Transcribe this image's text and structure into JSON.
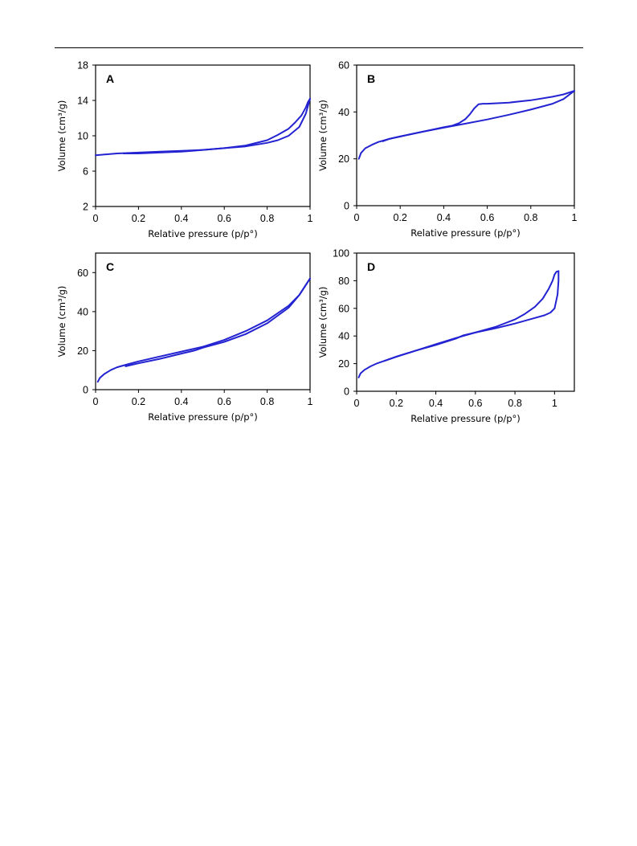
{
  "colors": {
    "series": "#2323d2",
    "axis": "#000000"
  },
  "chart_data": [
    {
      "type": "line",
      "panel_label": "A",
      "xlabel": "Relative pressure (p/p°)",
      "ylabel": "Volume (cm³/g)",
      "xlim": [
        0,
        1
      ],
      "ylim": [
        2,
        18
      ],
      "xticks": [
        "0",
        "0.2",
        "0.4",
        "0.6",
        "0.8",
        "1"
      ],
      "yticks": [
        "2",
        "6",
        "10",
        "14",
        "18"
      ],
      "xtick_values": [
        0,
        0.2,
        0.4,
        0.6,
        0.8,
        1
      ],
      "ytick_values": [
        2,
        6,
        10,
        14,
        18
      ],
      "grid": false,
      "series": [
        {
          "x": [
            0,
            0.05,
            0.1,
            0.2,
            0.3,
            0.4,
            0.5,
            0.6,
            0.7,
            0.8,
            0.85,
            0.9,
            0.93,
            0.96,
            0.98,
            0.99,
            1.0
          ],
          "y": [
            7.8,
            7.9,
            8.0,
            8.1,
            8.2,
            8.3,
            8.4,
            8.6,
            8.9,
            9.5,
            10.1,
            10.8,
            11.5,
            12.3,
            13.2,
            13.8,
            14.2
          ]
        },
        {
          "x": [
            1.0,
            0.98,
            0.95,
            0.9,
            0.85,
            0.8,
            0.7,
            0.6,
            0.5,
            0.45,
            0.4,
            0.3,
            0.2,
            0.13
          ],
          "y": [
            14.2,
            12.5,
            11.0,
            10.0,
            9.5,
            9.2,
            8.8,
            8.6,
            8.4,
            8.3,
            8.2,
            8.1,
            8.0,
            8.0
          ]
        }
      ]
    },
    {
      "type": "line",
      "panel_label": "B",
      "xlabel": "Relative pressure (p/p°)",
      "ylabel": "Volume (cm³/g)",
      "xlim": [
        0,
        1
      ],
      "ylim": [
        0,
        60
      ],
      "xticks": [
        "0",
        "0.2",
        "0.4",
        "0.6",
        "0.8",
        "1"
      ],
      "yticks": [
        "0",
        "20",
        "40",
        "60"
      ],
      "xtick_values": [
        0,
        0.2,
        0.4,
        0.6,
        0.8,
        1
      ],
      "ytick_values": [
        0,
        20,
        40,
        60
      ],
      "grid": false,
      "series": [
        {
          "x": [
            0.01,
            0.02,
            0.04,
            0.07,
            0.1,
            0.15,
            0.2,
            0.3,
            0.4,
            0.5,
            0.6,
            0.7,
            0.8,
            0.9,
            0.95,
            1.0
          ],
          "y": [
            20,
            22.5,
            24.5,
            26,
            27.2,
            28.5,
            29.6,
            31.5,
            33.3,
            35,
            36.8,
            38.8,
            41,
            43.5,
            45.5,
            49
          ]
        },
        {
          "x": [
            1.0,
            0.95,
            0.9,
            0.8,
            0.7,
            0.6,
            0.58,
            0.56,
            0.54,
            0.52,
            0.5,
            0.47,
            0.44,
            0.4,
            0.3,
            0.2,
            0.15,
            0.12
          ],
          "y": [
            49,
            47.5,
            46.5,
            45,
            44,
            43.5,
            43.5,
            43.3,
            41.5,
            39,
            37,
            35.2,
            34.2,
            33.5,
            31.5,
            29.5,
            28.5,
            27.5
          ]
        }
      ]
    },
    {
      "type": "line",
      "panel_label": "C",
      "xlabel": "Relative pressure (p/p°)",
      "ylabel": "Volume (cm³/g)",
      "xlim": [
        0,
        1
      ],
      "ylim": [
        0,
        70
      ],
      "xticks": [
        "0",
        "0.2",
        "0.4",
        "0.6",
        "0.8",
        "1"
      ],
      "yticks": [
        "0",
        "20",
        "40",
        "60"
      ],
      "xtick_values": [
        0,
        0.2,
        0.4,
        0.6,
        0.8,
        1
      ],
      "ytick_values": [
        0,
        20,
        40,
        60
      ],
      "grid": false,
      "series": [
        {
          "x": [
            0.01,
            0.02,
            0.04,
            0.07,
            0.1,
            0.15,
            0.2,
            0.3,
            0.4,
            0.5,
            0.6,
            0.7,
            0.8,
            0.9,
            0.95,
            1.0
          ],
          "y": [
            4,
            6,
            8,
            10,
            11.5,
            13,
            14.5,
            17,
            19.5,
            22,
            25.5,
            30,
            35.5,
            43,
            48.5,
            57
          ]
        },
        {
          "x": [
            1.0,
            0.95,
            0.9,
            0.8,
            0.7,
            0.6,
            0.5,
            0.46,
            0.4,
            0.3,
            0.2,
            0.14
          ],
          "y": [
            57,
            48.5,
            42,
            34,
            28.5,
            24.5,
            21.5,
            20,
            18.5,
            15.8,
            13.5,
            12
          ]
        }
      ]
    },
    {
      "type": "line",
      "panel_label": "D",
      "xlabel": "Relative pressure (p/p°)",
      "ylabel": "Volume (cm³/g)",
      "xlim": [
        0,
        1.1
      ],
      "ylim": [
        0,
        100
      ],
      "xticks": [
        "0",
        "0.2",
        "0.4",
        "0.6",
        "0.8",
        "1"
      ],
      "yticks": [
        "0",
        "20",
        "40",
        "60",
        "80",
        "100"
      ],
      "xtick_values": [
        0,
        0.2,
        0.4,
        0.6,
        0.8,
        1
      ],
      "ytick_values": [
        0,
        20,
        40,
        60,
        80,
        100
      ],
      "grid": false,
      "series": [
        {
          "x": [
            0.01,
            0.02,
            0.04,
            0.07,
            0.1,
            0.15,
            0.2,
            0.3,
            0.4,
            0.5,
            0.6,
            0.7,
            0.8,
            0.85,
            0.9,
            0.94,
            0.97,
            0.99,
            1.0,
            1.01,
            1.02
          ],
          "y": [
            10,
            13,
            15.5,
            18,
            20,
            22.5,
            25,
            29.5,
            34,
            38.5,
            42.5,
            46.5,
            52,
            56,
            61,
            67,
            74,
            80,
            84.5,
            86.5,
            87
          ]
        },
        {
          "x": [
            1.02,
            1.02,
            1.015,
            1.0,
            0.98,
            0.95,
            0.9,
            0.8,
            0.7,
            0.6,
            0.54,
            0.5,
            0.4,
            0.3,
            0.2,
            0.14
          ],
          "y": [
            87,
            80,
            70,
            60,
            57,
            55,
            53,
            49,
            45.5,
            42.5,
            40.5,
            38,
            33.5,
            29.5,
            25,
            22
          ]
        }
      ]
    }
  ]
}
